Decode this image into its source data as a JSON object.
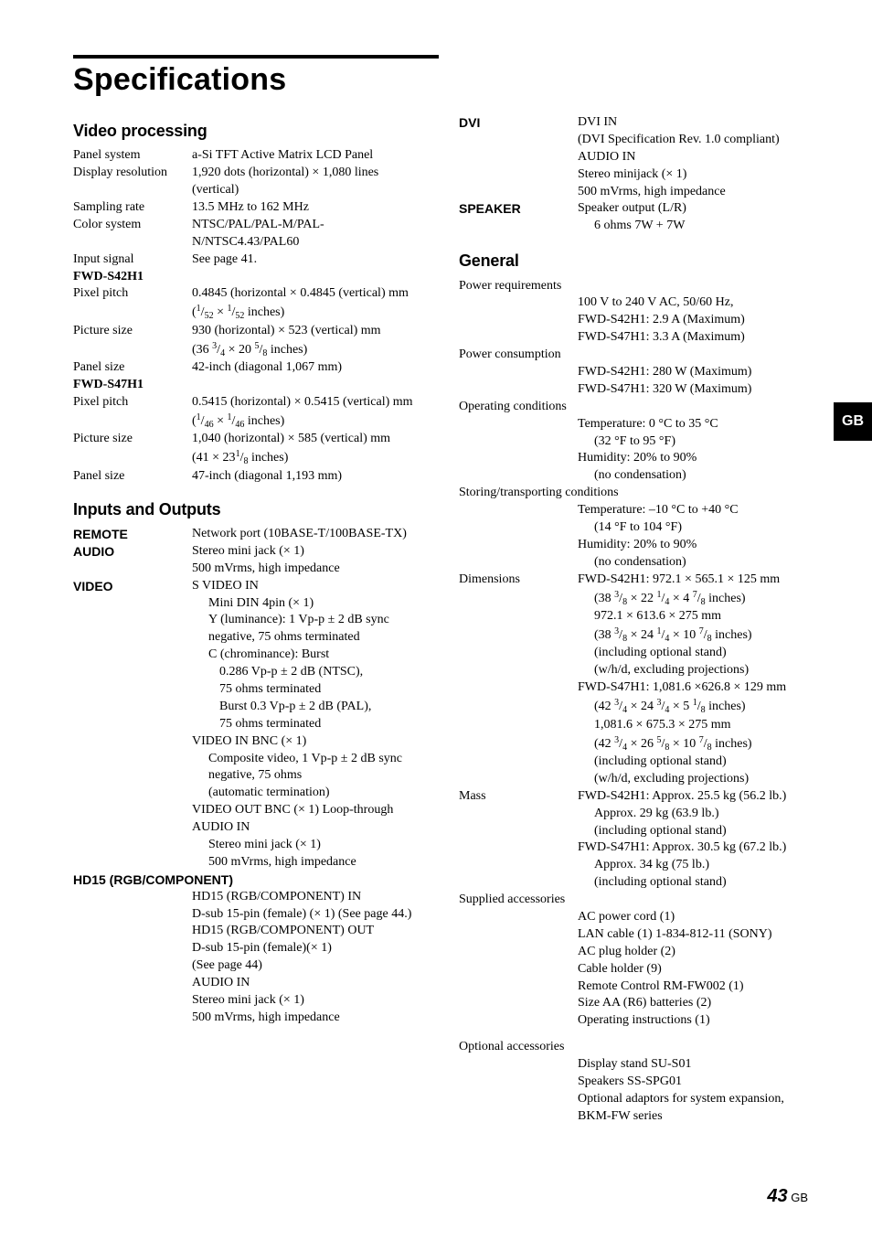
{
  "title": "Specifications",
  "side_tab": "GB",
  "page_number_big": "43",
  "page_number_suffix": " GB",
  "video_processing": {
    "heading": "Video processing",
    "rows": [
      {
        "label": "Panel system",
        "value": "a-Si TFT Active Matrix LCD Panel"
      },
      {
        "label": "Display resolution",
        "value": "1,920 dots (horizontal) × 1,080 lines (vertical)"
      },
      {
        "label": "Sampling rate",
        "value": "13.5 MHz to 162 MHz"
      },
      {
        "label": "Color system",
        "value": "NTSC/PAL/PAL-M/PAL-N/NTSC4.43/PAL60"
      },
      {
        "label": "Input signal",
        "value": "See page 41."
      }
    ],
    "model1": "FWD-S42H1",
    "m1_pixel_pitch_1": "0.4845 (horizontal × 0.4845 (vertical) mm",
    "m1_pixel_pitch_2_html": "(<span class='frac'><span class='num'>1</span>/<span class='den'>52</span></span> × <span class='frac'><span class='num'>1</span>/<span class='den'>52</span></span> inches)",
    "m1_picture_1": "930 (horizontal)  × 523 (vertical) mm",
    "m1_picture_2_html": "(36 <span class='frac'><span class='num'>3</span>/<span class='den'>4</span></span> × 20 <span class='frac'><span class='num'>5</span>/<span class='den'>8</span></span> inches)",
    "m1_panel": " 42-inch (diagonal 1,067 mm)",
    "model2": "FWD-S47H1",
    "m2_pixel_pitch_1": "0.5415 (horizontal) × 0.5415 (vertical) mm",
    "m2_pixel_pitch_2_html": "(<span class='frac'><span class='num'>1</span>/<span class='den'>46</span></span> × <span class='frac'><span class='num'>1</span>/<span class='den'>46</span></span> inches)",
    "m2_picture_1": "1,040 (horizontal) × 585 (vertical) mm",
    "m2_picture_2_html": "(41 × 23<span class='frac'><span class='num'>1</span>/<span class='den'>8</span></span> inches)",
    "m2_panel": "47-inch (diagonal 1,193 mm)"
  },
  "io": {
    "heading": "Inputs and Outputs",
    "remote_label": "REMOTE",
    "remote_val": "Network port (10BASE-T/100BASE-TX)",
    "audio_label": "AUDIO",
    "audio_val_1": "Stereo mini jack (× 1)",
    "audio_val_2": "500 mVrms, high impedance",
    "video_label": "VIDEO",
    "video_lines": [
      "S VIDEO IN",
      "Mini DIN 4pin (× 1)",
      "Y (luminance): 1 Vp-p ± 2 dB sync negative, 75 ohms terminated",
      "C (chrominance): Burst",
      "0.286 Vp-p ± 2 dB (NTSC),",
      "75 ohms terminated",
      "Burst 0.3 Vp-p ± 2 dB (PAL),",
      "75 ohms terminated",
      "VIDEO IN BNC (× 1)",
      "Composite video, 1 Vp-p ± 2 dB sync negative, 75 ohms",
      "(automatic termination)",
      "VIDEO OUT BNC (× 1) Loop-through",
      "AUDIO IN",
      "Stereo mini jack (× 1)",
      "500 mVrms, high impedance"
    ],
    "hd15_label": "HD15 (RGB/COMPONENT)",
    "hd15_lines": [
      "HD15 (RGB/COMPONENT) IN",
      "D-sub 15-pin (female) (× 1) (See page 44.)",
      "HD15 (RGB/COMPONENT) OUT",
      "D-sub 15-pin (female)(× 1)",
      "(See page 44)",
      "AUDIO IN",
      "Stereo mini jack (× 1)",
      "500 mVrms, high impedance"
    ],
    "dvi_label": "DVI",
    "dvi_lines": [
      "DVI IN",
      "(DVI Specification Rev. 1.0 compliant)",
      "AUDIO IN",
      "Stereo minijack (× 1)",
      "500 mVrms, high impedance"
    ],
    "speaker_label": "SPEAKER",
    "speaker_lines": [
      "Speaker output (L/R)",
      "6 ohms 7W + 7W"
    ]
  },
  "general": {
    "heading": "General",
    "power_req_label": "Power requirements",
    "power_req": [
      "100 V to 240 V AC, 50/60 Hz,",
      "FWD-S42H1: 2.9 A (Maximum)",
      "FWD-S47H1: 3.3 A (Maximum)"
    ],
    "power_con_label": "Power consumption",
    "power_con": [
      "FWD-S42H1: 280 W (Maximum)",
      "FWD-S47H1: 320 W (Maximum)"
    ],
    "op_cond_label": "Operating conditions",
    "op_cond": [
      "Temperature: 0 °C to 35 °C",
      "(32 °F to 95 °F)",
      "Humidity: 20% to 90%",
      "(no condensation)"
    ],
    "store_label": "Storing/transporting conditions",
    "store": [
      "Temperature: –10 °C to +40 °C",
      "(14 °F to 104 °F)",
      "Humidity: 20% to 90%",
      "(no condensation)"
    ],
    "dim_label": "Dimensions",
    "dim_html": [
      "FWD-S42H1: 972.1 × 565.1 × 125 mm",
      "(38 <span class='frac'><span class='num'>3</span>/<span class='den'>8</span></span> × 22 <span class='frac'><span class='num'>1</span>/<span class='den'>4</span></span> × 4 <span class='frac'><span class='num'>7</span>/<span class='den'>8</span></span> inches)",
      "972.1 × 613.6 × 275 mm",
      "(38 <span class='frac'><span class='num'>3</span>/<span class='den'>8</span></span> × 24 <span class='frac'><span class='num'>1</span>/<span class='den'>4</span></span> × 10 <span class='frac'><span class='num'>7</span>/<span class='den'>8</span></span> inches)",
      "(including optional stand)",
      "(w/h/d, excluding projections)",
      "FWD-S47H1: 1,081.6 ×626.8 × 129 mm",
      "(42 <span class='frac'><span class='num'>3</span>/<span class='den'>4</span></span> × 24 <span class='frac'><span class='num'>3</span>/<span class='den'>4</span></span> × 5 <span class='frac'><span class='num'>1</span>/<span class='den'>8</span></span> inches)",
      "1,081.6 × 675.3 × 275 mm",
      "(42 <span class='frac'><span class='num'>3</span>/<span class='den'>4</span></span> × 26 <span class='frac'><span class='num'>5</span>/<span class='den'>8</span></span> × 10 <span class='frac'><span class='num'>7</span>/<span class='den'>8</span></span> inches)",
      "(including optional stand)",
      "(w/h/d, excluding projections)"
    ],
    "mass_label": "Mass",
    "mass": [
      "FWD-S42H1: Approx. 25.5 kg (56.2 lb.)",
      "Approx. 29 kg (63.9 lb.)",
      "(including optional stand)",
      "FWD-S47H1: Approx. 30.5 kg (67.2 lb.)",
      "Approx. 34 kg (75 lb.)",
      "(including optional stand)"
    ],
    "supplied_label": "Supplied accessories",
    "supplied": [
      "AC power cord (1)",
      "LAN cable (1) 1-834-812-11 (SONY)",
      "AC plug holder (2)",
      "Cable holder (9)",
      "Remote Control RM-FW002 (1)",
      "Size AA (R6) batteries (2)",
      "Operating instructions (1)"
    ],
    "optional_label": "Optional accessories",
    "optional": [
      "Display stand SU-S01",
      "Speakers SS-SPG01",
      "Optional adaptors for system expansion, BKM-FW series"
    ]
  }
}
